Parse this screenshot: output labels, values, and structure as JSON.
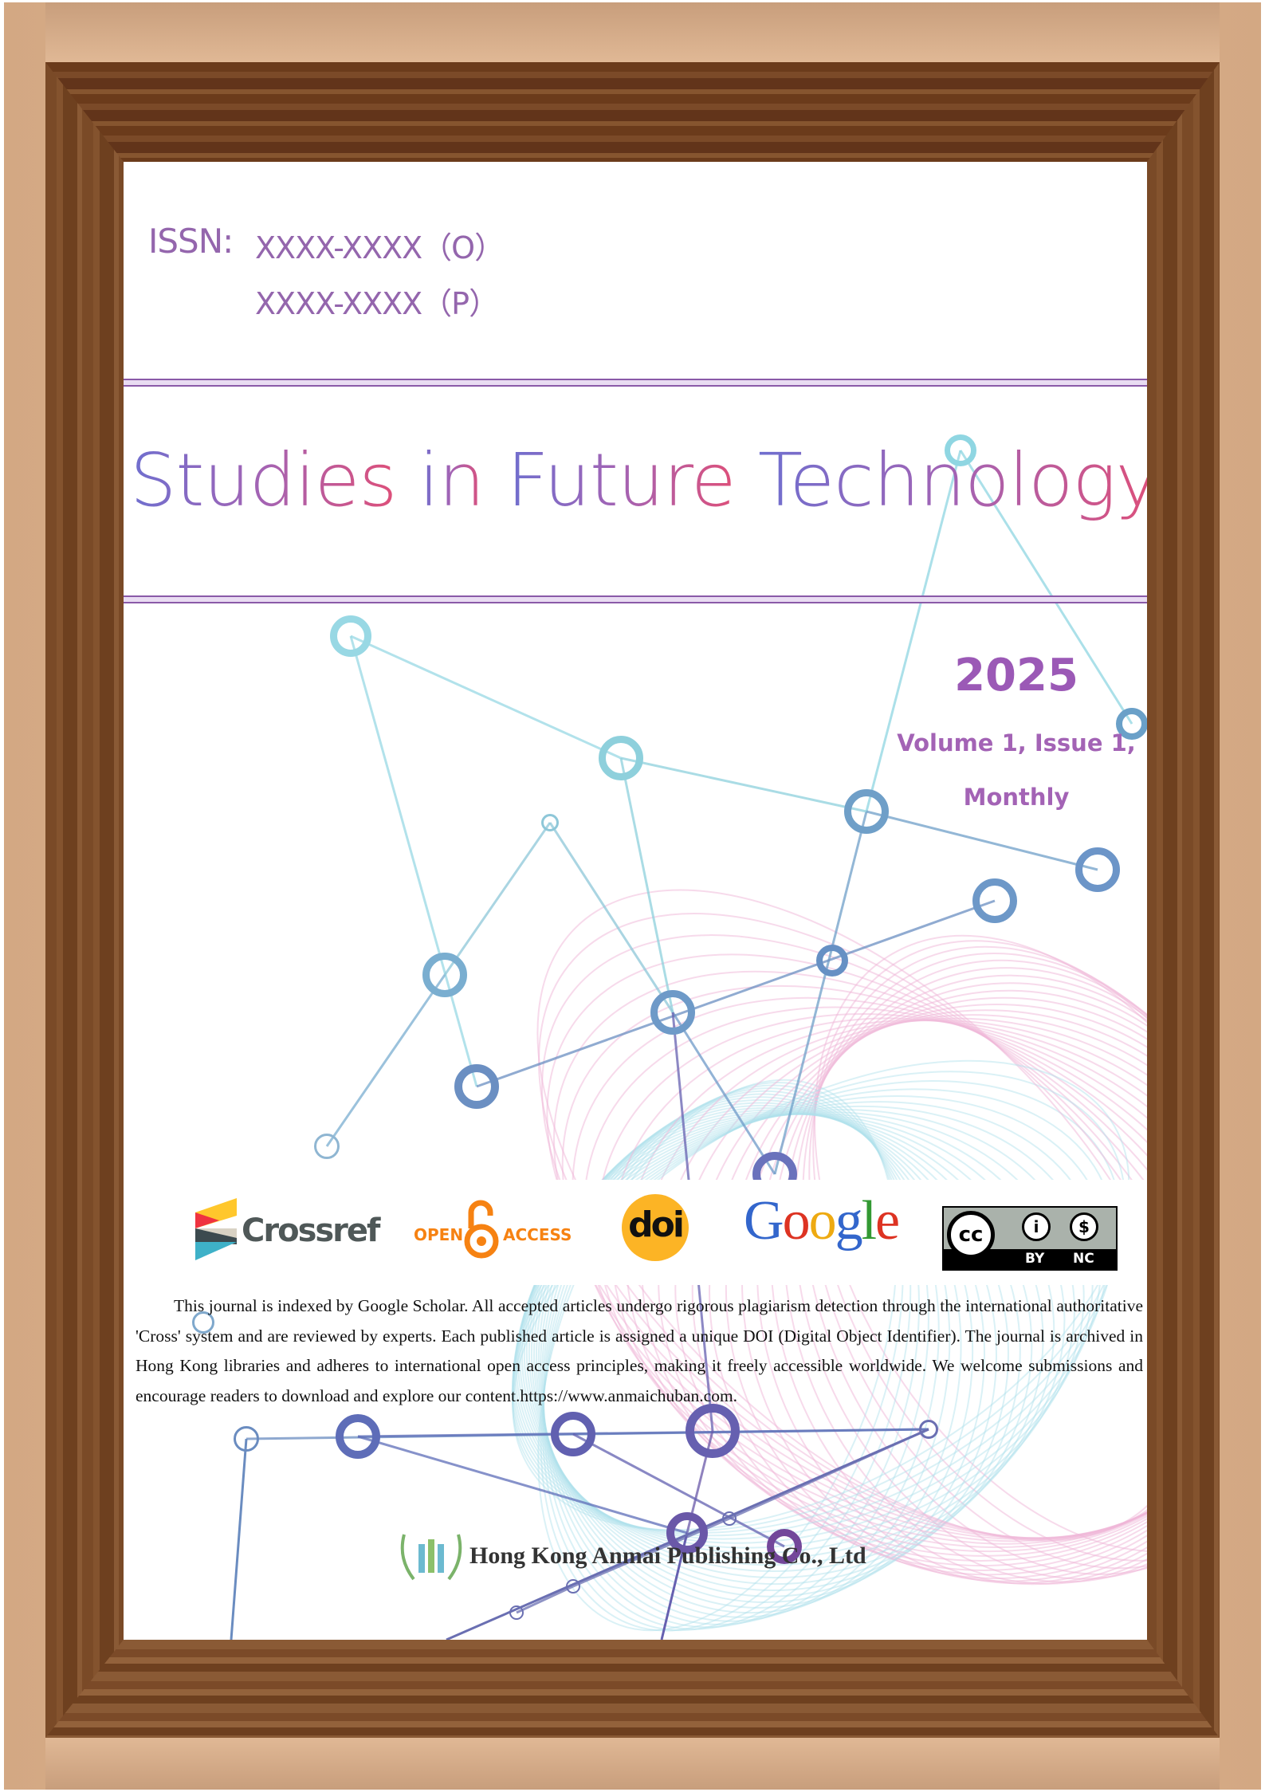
{
  "issn": {
    "label": "ISSN:",
    "online": "XXXX-XXXX（O）",
    "print": "XXXX-XXXX（P）"
  },
  "title": {
    "words": [
      "Studies",
      "in",
      "Future",
      "Technology"
    ]
  },
  "issue": {
    "year": "2025",
    "volume": "Volume 1, Issue 1,",
    "frequency": "Monthly"
  },
  "logos": {
    "crossref": "Crossref",
    "open_access_open": "OPEN",
    "open_access_access": "ACCESS",
    "doi": "doi",
    "google": [
      "G",
      "o",
      "o",
      "g",
      "l",
      "e"
    ],
    "cc": "cc",
    "cc_by": "BY",
    "cc_nc": "NC"
  },
  "colors": {
    "accent_purple": "#9b59b6",
    "google": [
      "#3366cc",
      "#dd3322",
      "#eeaa11",
      "#3366cc",
      "#339933",
      "#dd3322"
    ],
    "doi_yellow": "#fcb425",
    "open_access_orange": "#f68212"
  },
  "description": "This journal is indexed by Google Scholar. All accepted articles undergo rigorous plagiarism detection through the international authoritative 'Cross' system and are reviewed by experts. Each published article is assigned a unique DOI (Digital Object Identifier). The journal is archived in Hong Kong libraries and adheres to international open access principles, making it freely accessible worldwide. We welcome submissions and encourage readers to download and explore our content.https://www.anmaichuban.com.",
  "publisher": {
    "name": "Hong Kong Anmai Publishing Co., Ltd",
    "logo_icon": "laurel-pillars-icon"
  }
}
